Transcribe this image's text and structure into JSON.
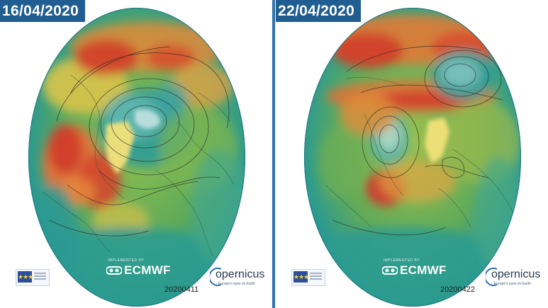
{
  "panels": [
    {
      "date": "16/04/2020",
      "stamp": "20200411",
      "implemented_by": "IMPLEMENTED BY",
      "ecmwf": "ECMWF",
      "copernicus": "opernicus",
      "tagline": "Europe's eyes on Earth"
    },
    {
      "date": "22/04/2020",
      "stamp": "20200422",
      "implemented_by": "IMPLEMENTED BY",
      "ecmwf": "ECMWF",
      "copernicus": "opernicus",
      "tagline": "Europe's eyes on Earth"
    }
  ],
  "colors": {
    "badge": "#205e92",
    "divider": "#2f73ad",
    "ocean_teal": "#1f8f95",
    "green": "#5fae5a",
    "yellow": "#e3c94a",
    "orange": "#e8843a",
    "red": "#d23a2a",
    "ice": "#f3f6dc"
  }
}
